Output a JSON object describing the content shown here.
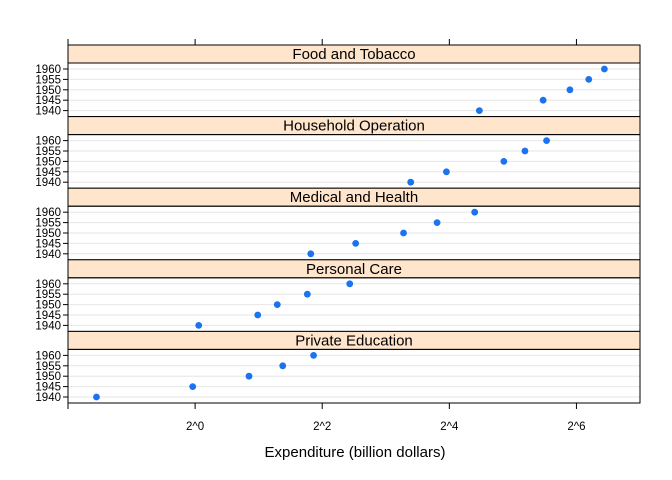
{
  "chart_data": {
    "type": "scatter",
    "xlabel": "Expenditure (billion dollars)",
    "log_base_x": 2,
    "xlim_log2": [
      -2.0,
      7.0
    ],
    "x_ticks": [
      {
        "log2": -2,
        "label": ""
      },
      {
        "log2": 0,
        "label": "2^0"
      },
      {
        "log2": 2,
        "label": "2^2"
      },
      {
        "log2": 4,
        "label": "2^4"
      },
      {
        "log2": 6,
        "label": "2^6"
      }
    ],
    "years": [
      "1940",
      "1945",
      "1950",
      "1955",
      "1960"
    ],
    "panels": [
      {
        "name": "Food and Tobacco",
        "values": [
          22.2,
          44.5,
          59.6,
          73.2,
          86.8
        ]
      },
      {
        "name": "Household Operation",
        "values": [
          10.5,
          15.5,
          29.0,
          36.5,
          46.2
        ]
      },
      {
        "name": "Medical and Health",
        "values": [
          3.53,
          5.76,
          9.71,
          14.0,
          21.1
        ]
      },
      {
        "name": "Personal Care",
        "values": [
          1.04,
          1.98,
          2.45,
          3.4,
          5.4
        ]
      },
      {
        "name": "Private Education",
        "values": [
          0.341,
          0.974,
          1.8,
          2.6,
          3.64
        ]
      }
    ],
    "grid": true,
    "point_color": "#1b73f0",
    "strip_color": "#ffe5cc"
  }
}
